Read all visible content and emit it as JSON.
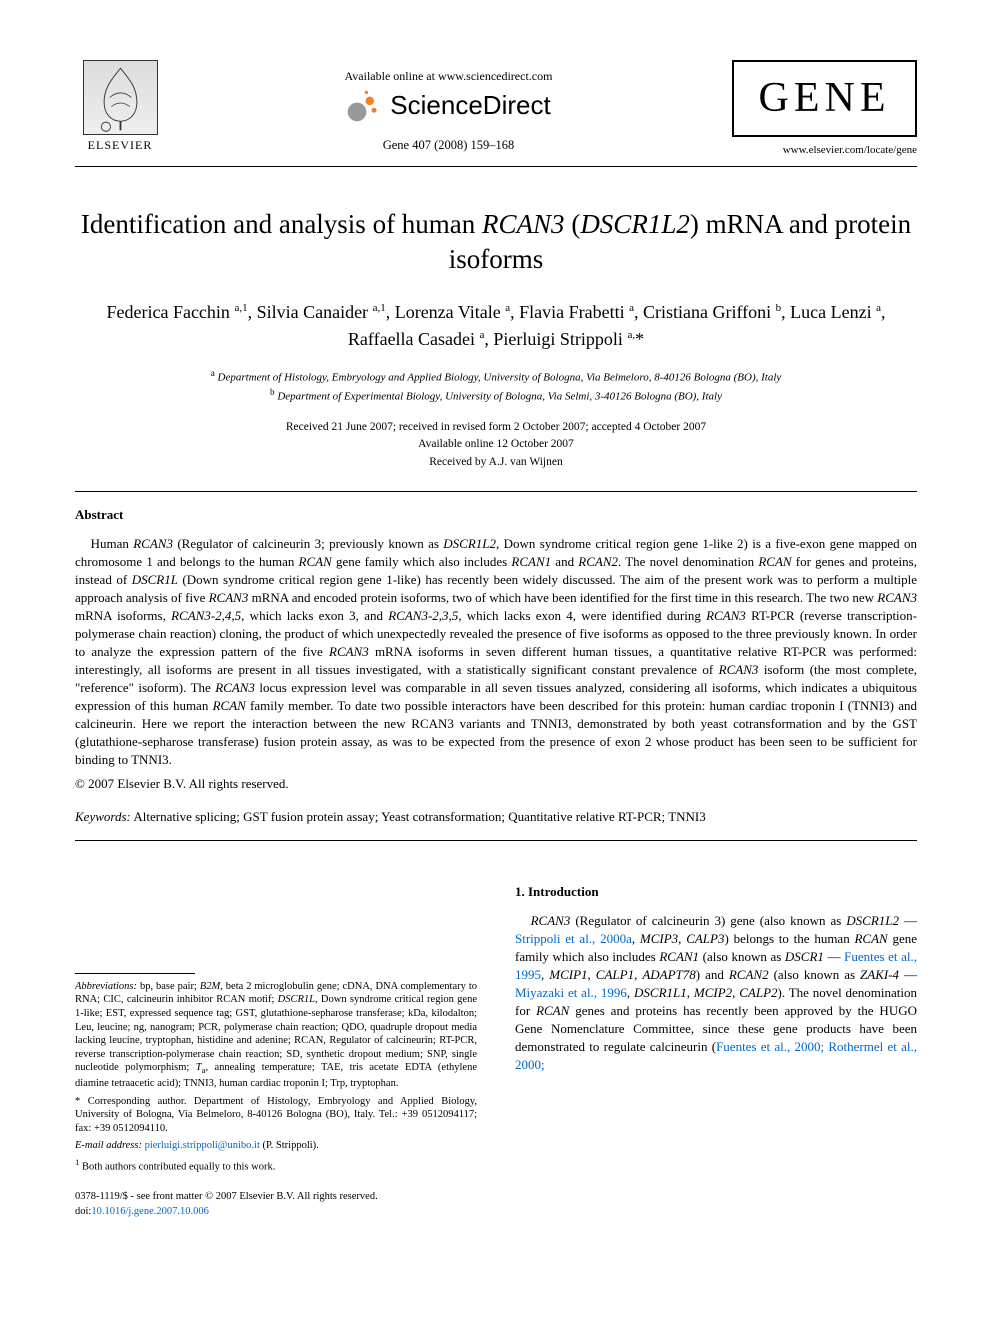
{
  "header": {
    "elsevier_label": "ELSEVIER",
    "available_online": "Available online at www.sciencedirect.com",
    "sciencedirect": "ScienceDirect",
    "citation": "Gene 407 (2008) 159–168",
    "journal_logo": "GENE",
    "journal_url": "www.elsevier.com/locate/gene",
    "sd_icon_color_large": "#999999",
    "sd_icon_color_small": "#f58220"
  },
  "article": {
    "title_pre": "Identification and analysis of human ",
    "title_em1": "RCAN3",
    "title_mid": " (",
    "title_em2": "DSCR1L2",
    "title_post": ") mRNA and protein isoforms",
    "authors_html": "Federica Facchin <sup>a,1</sup>, Silvia Canaider <sup>a,1</sup>, Lorenza Vitale <sup>a</sup>, Flavia Frabetti <sup>a</sup>, Cristiana Griffoni <sup>b</sup>, Luca Lenzi <sup>a</sup>, Raffaella Casadei <sup>a</sup>, Pierluigi Strippoli <sup>a,</sup>*",
    "aff_a": "Department of Histology, Embryology and Applied Biology, University of Bologna, Via Belmeloro, 8-40126 Bologna (BO), Italy",
    "aff_b": "Department of Experimental Biology, University of Bologna, Via Selmi, 3-40126 Bologna (BO), Italy",
    "dates_line1": "Received 21 June 2007; received in revised form 2 October 2007; accepted 4 October 2007",
    "dates_line2": "Available online 12 October 2007",
    "dates_line3": "Received by A.J. van Wijnen"
  },
  "abstract": {
    "heading": "Abstract",
    "body_html": "Human <em>RCAN3</em> (Regulator of calcineurin 3; previously known as <em>DSCR1L2</em>, Down syndrome critical region gene 1-like 2) is a five-exon gene mapped on chromosome 1 and belongs to the human <em>RCAN</em> gene family which also includes <em>RCAN1</em> and <em>RCAN2</em>. The novel denomination <em>RCAN</em> for genes and proteins, instead of <em>DSCR1L</em> (Down syndrome critical region gene 1-like) has recently been widely discussed. The aim of the present work was to perform a multiple approach analysis of five <em>RCAN3</em> mRNA and encoded protein isoforms, two of which have been identified for the first time in this research. The two new <em>RCAN3</em> mRNA isoforms, <em>RCAN3-2,4,5</em>, which lacks exon 3, and <em>RCAN3-2,3,5</em>, which lacks exon 4, were identified during <em>RCAN3</em> RT-PCR (reverse transcription-polymerase chain reaction) cloning, the product of which unexpectedly revealed the presence of five isoforms as opposed to the three previously known. In order to analyze the expression pattern of the five <em>RCAN3</em> mRNA isoforms in seven different human tissues, a quantitative relative RT-PCR was performed: interestingly, all isoforms are present in all tissues investigated, with a statistically significant constant prevalence of <em>RCAN3</em> isoform (the most complete, \"reference\" isoform). The <em>RCAN3</em> locus expression level was comparable in all seven tissues analyzed, considering all isoforms, which indicates a ubiquitous expression of this human <em>RCAN</em> family member. To date two possible interactors have been described for this protein: human cardiac troponin I (TNNI3) and calcineurin. Here we report the interaction between the new RCAN3 variants and TNNI3, demonstrated by both yeast cotransformation and by the GST (glutathione-sepharose transferase) fusion protein assay, as was to be expected from the presence of exon 2 whose product has been seen to be sufficient for binding to TNNI3.",
    "copyright": "© 2007 Elsevier B.V. All rights reserved."
  },
  "keywords": {
    "label": "Keywords:",
    "text": " Alternative splicing; GST fusion protein assay; Yeast cotransformation; Quantitative relative RT-PCR; TNNI3"
  },
  "footnotes": {
    "abbrev_label": "Abbreviations:",
    "abbrev_text": " bp, base pair; <em>B2M</em>, beta 2 microglobulin gene; cDNA, DNA complementary to RNA; CIC, calcineurin inhibitor RCAN motif; <em>DSCR1L</em>, Down syndrome critical region gene 1-like; EST, expressed sequence tag; GST, glutathione-sepharose transferase; kDa, kilodalton; Leu, leucine; ng, nanogram; PCR, polymerase chain reaction; QDO, quadruple dropout media lacking leucine, tryptophan, histidine and adenine; RCAN, Regulator of calcineurin; RT-PCR, reverse transcription-polymerase chain reaction; SD, synthetic dropout medium; SNP, single nucleotide polymorphism; <em>T</em><sub>a</sub>, annealing temperature; TAE, tris acetate EDTA (ethylene diamine tetraacetic acid); TNNI3, human cardiac troponin I; Trp, tryptophan.",
    "corr_label": "* Corresponding author.",
    "corr_text": " Department of Histology, Embryology and Applied Biology, University of Bologna, Via Belmeloro, 8-40126 Bologna (BO), Italy. Tel.: +39 0512094117; fax: +39 0512094110.",
    "email_label": "E-mail address:",
    "email": "pierluigi.strippoli@unibo.it",
    "email_suffix": " (P. Strippoli).",
    "note1": "Both authors contributed equally to this work.",
    "note1_marker": "1"
  },
  "intro": {
    "heading": "1. Introduction",
    "body_html": "<em>RCAN3</em> (Regulator of calcineurin 3) gene (also known as <em>DSCR1L2</em> — <span class=\"link\">Strippoli et al., 2000a</span>, <em>MCIP3</em>, <em>CALP3</em>) belongs to the human <em>RCAN</em> gene family which also includes <em>RCAN1</em> (also known as <em>DSCR1</em> — <span class=\"link\">Fuentes et al., 1995</span>, <em>MCIP1</em>, <em>CALP1</em>, <em>ADAPT78</em>) and <em>RCAN2</em> (also known as <em>ZAKI-4</em> — <span class=\"link\">Miyazaki et al., 1996</span>, <em>DSCR1L1</em>, <em>MCIP2</em>, <em>CALP2</em>). The novel denomination for <em>RCAN</em> genes and proteins has recently been approved by the HUGO Gene Nomenclature Committee, since these gene products have been demonstrated to regulate calcineurin (<span class=\"link\">Fuentes et al., 2000; Rothermel et al., 2000;</span>"
  },
  "page_footer": {
    "line1": "0378-1119/$ - see front matter © 2007 Elsevier B.V. All rights reserved.",
    "doi_label": "doi:",
    "doi": "10.1016/j.gene.2007.10.006"
  },
  "colors": {
    "link": "#0066cc",
    "text": "#000000",
    "bg": "#ffffff"
  }
}
